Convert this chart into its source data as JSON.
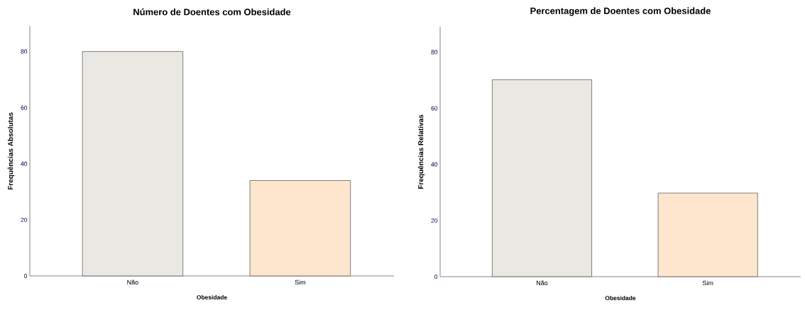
{
  "chart_data": [
    {
      "type": "bar",
      "title": "Número de Doentes com Obesidade",
      "xlabel": "Obesidade",
      "ylabel": "Frequências Absolutas",
      "categories": [
        "Não",
        "Sim"
      ],
      "values": [
        80,
        34
      ],
      "colors": [
        "#e9e8e3",
        "#fee5ce"
      ],
      "ylim": [
        0,
        89
      ],
      "yticks": [
        0,
        20,
        40,
        60,
        80
      ]
    },
    {
      "type": "bar",
      "title": "Percentagem de Doentes com Obesidade",
      "xlabel": "Obesidade",
      "ylabel": "Frequências Relativas",
      "categories": [
        "Não",
        "Sim"
      ],
      "values": [
        70.2,
        29.8
      ],
      "colors": [
        "#e9e8e3",
        "#fee5ce"
      ],
      "ylim": [
        0,
        89
      ],
      "yticks": [
        0,
        20,
        40,
        60,
        80
      ]
    }
  ]
}
